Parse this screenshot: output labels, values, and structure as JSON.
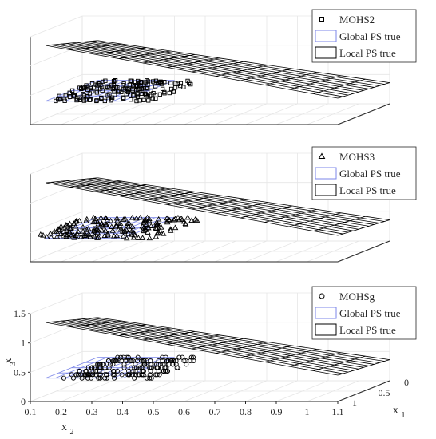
{
  "chart_data": [
    {
      "type": "surface3d",
      "legend": {
        "position": "top-right",
        "entries": [
          {
            "label": "MOHS2",
            "marker": "square"
          },
          {
            "label": "Global PS true",
            "style": "blue-box"
          },
          {
            "label": "Local PS true",
            "style": "black-box"
          }
        ]
      },
      "series": [
        {
          "name": "MOHS2",
          "marker": "square",
          "x2_range": [
            0.15,
            0.5
          ],
          "x3": 0.4
        }
      ],
      "local_ps": {
        "x2_range": [
          0.15,
          1.1
        ],
        "x3_at_x2_min": 1.35,
        "x3_at_x2_max": 0.45
      },
      "global_ps": {
        "x2_range": [
          0.15,
          0.4
        ],
        "x3": 0.4
      }
    },
    {
      "type": "surface3d",
      "legend": {
        "position": "top-right",
        "entries": [
          {
            "label": "MOHS3",
            "marker": "triangle"
          },
          {
            "label": "Global PS true",
            "style": "blue-box"
          },
          {
            "label": "Local PS true",
            "style": "black-box"
          }
        ]
      },
      "series": [
        {
          "name": "MOHS3",
          "marker": "triangle",
          "x2_range": [
            0.1,
            0.5
          ],
          "x3": 0.4
        }
      ],
      "local_ps": {
        "x2_range": [
          0.15,
          1.1
        ],
        "x3_at_x2_min": 1.35,
        "x3_at_x2_max": 0.45
      },
      "global_ps": {
        "x2_range": [
          0.15,
          0.4
        ],
        "x3": 0.4
      }
    },
    {
      "type": "surface3d",
      "legend": {
        "position": "top-right",
        "entries": [
          {
            "label": "MOHSg",
            "marker": "circle"
          },
          {
            "label": "Global PS true",
            "style": "blue-box"
          },
          {
            "label": "Local PS true",
            "style": "black-box"
          }
        ]
      },
      "series": [
        {
          "name": "MOHSg",
          "marker": "circle",
          "x2_range": [
            0.2,
            0.5
          ],
          "x3": 0.4
        }
      ],
      "local_ps": {
        "x2_range": [
          0.15,
          1.1
        ],
        "x3_at_x2_min": 1.35,
        "x3_at_x2_max": 0.45
      },
      "global_ps": {
        "x2_range": [
          0.15,
          0.4
        ],
        "x3": 0.4
      },
      "axes": {
        "x2": {
          "label": "x",
          "sub": "2",
          "ticks": [
            "0.1",
            "0.2",
            "0.3",
            "0.4",
            "0.5",
            "0.6",
            "0.7",
            "0.8",
            "0.9",
            "1",
            "1.1"
          ],
          "range": [
            0.1,
            1.1
          ]
        },
        "x1": {
          "label": "x",
          "sub": "1",
          "ticks": [
            "0",
            "0.5",
            "1"
          ],
          "range": [
            0,
            1
          ]
        },
        "x3": {
          "label": "x",
          "sub": "3",
          "ticks": [
            "0",
            "0.5",
            "1",
            "1.5"
          ],
          "range": [
            0,
            1.5
          ]
        }
      }
    }
  ],
  "colors": {
    "axis": "#262626",
    "grid": "#e6e6e6",
    "global": "#7b86e8",
    "local": "#000000",
    "marker": "#000000"
  }
}
